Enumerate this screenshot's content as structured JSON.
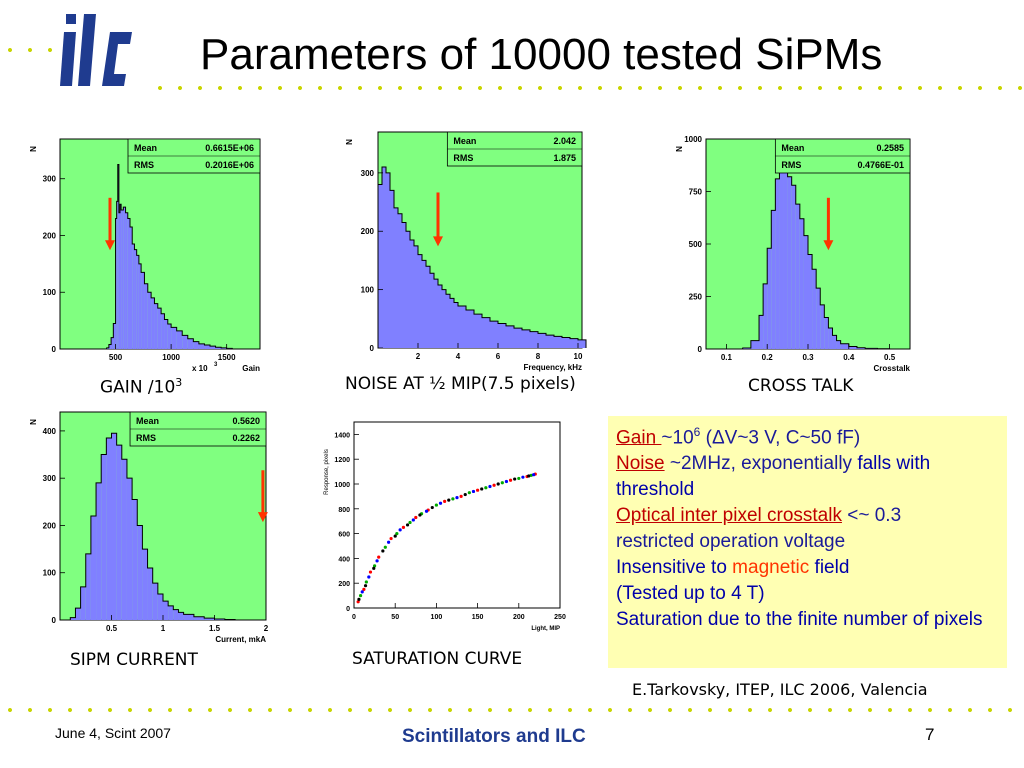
{
  "slide": {
    "title": "Parameters of 10000 tested SiPMs",
    "colors": {
      "accent_dots": "#c8d400",
      "plot_bg": "#80ff80",
      "histogram_fill": "#8080ff",
      "arrow": "#ff3300",
      "text_box": "#ffffb3"
    }
  },
  "logo": {
    "text": "ilc",
    "icon": "ilc-logo-icon"
  },
  "captions": {
    "gain": "GAIN /10",
    "gain_sup": "3",
    "noise": "NOISE AT ½ MIP(7.5 pixels)",
    "cross_talk": "CROSS TALK",
    "current": "SIPM CURRENT",
    "saturation": "SATURATION CURVE"
  },
  "text_box": {
    "gain_label": "Gain ",
    "gain_value": "~10",
    "gain_exp": "6",
    "gain_rest": " (ΔV~3 V, C~50 fF)",
    "noise_label": "Noise",
    "noise_value": " ~2MHz, exponentially ",
    "noise_tail": "falls with threshold",
    "crosstalk_label": "Optical inter pixel crosstalk",
    "crosstalk_value": " <~ 0.3",
    "restricted": "restricted operation voltage",
    "insensitive_1": "Insensitive to ",
    "insensitive_magnetic": "magnetic",
    "insensitive_2": " field",
    "tested": "(Tested up to 4 T)",
    "saturation": "Saturation due to the finite number of pixels"
  },
  "credit": "E.Tarkovsky, ITEP, ILC 2006, Valencia",
  "footer": {
    "date": "June 4,  Scint 2007",
    "center": "Scintillators and ILC",
    "page": "7"
  },
  "chart_data": [
    {
      "type": "bar",
      "id": "gain",
      "ylabel": "N",
      "xlabel": "Gain",
      "x_multiplier": "x 10",
      "x_multiplier_exp": "3",
      "stats": [
        {
          "label": "Mean",
          "value": "0.6615E+06"
        },
        {
          "label": "RMS",
          "value": "0.2016E+06"
        }
      ],
      "xlim": [
        0,
        1800
      ],
      "ylim": [
        0,
        370
      ],
      "x_ticks": [
        500,
        1000,
        1500
      ],
      "y_ticks": [
        0,
        100,
        200,
        300
      ],
      "arrow_x": 450,
      "bins": [
        [
          420,
          2
        ],
        [
          440,
          8
        ],
        [
          460,
          20
        ],
        [
          480,
          45
        ],
        [
          500,
          230
        ],
        [
          510,
          260
        ],
        [
          520,
          325
        ],
        [
          530,
          240
        ],
        [
          540,
          255
        ],
        [
          550,
          245
        ],
        [
          570,
          250
        ],
        [
          590,
          240
        ],
        [
          610,
          230
        ],
        [
          630,
          215
        ],
        [
          650,
          185
        ],
        [
          670,
          175
        ],
        [
          690,
          165
        ],
        [
          710,
          150
        ],
        [
          730,
          135
        ],
        [
          760,
          115
        ],
        [
          790,
          100
        ],
        [
          820,
          90
        ],
        [
          850,
          80
        ],
        [
          880,
          72
        ],
        [
          910,
          62
        ],
        [
          940,
          52
        ],
        [
          970,
          44
        ],
        [
          1000,
          38
        ],
        [
          1050,
          32
        ],
        [
          1100,
          24
        ],
        [
          1150,
          18
        ],
        [
          1200,
          13
        ],
        [
          1250,
          9
        ],
        [
          1300,
          7
        ],
        [
          1350,
          5
        ],
        [
          1400,
          3
        ],
        [
          1450,
          2
        ],
        [
          1500,
          1
        ]
      ]
    },
    {
      "type": "bar",
      "id": "noise",
      "ylabel": "N",
      "xlabel": "Frequency, kHz",
      "stats": [
        {
          "label": "Mean",
          "value": "2.042"
        },
        {
          "label": "RMS",
          "value": "1.875"
        }
      ],
      "xlim": [
        0,
        10.2
      ],
      "ylim": [
        0,
        370
      ],
      "x_ticks": [
        2,
        4,
        6,
        8,
        10
      ],
      "y_ticks": [
        0,
        100,
        200,
        300
      ],
      "arrow_x": 3.0,
      "bins": [
        [
          0.0,
          280
        ],
        [
          0.2,
          310
        ],
        [
          0.4,
          300
        ],
        [
          0.6,
          270
        ],
        [
          0.8,
          240
        ],
        [
          1.0,
          230
        ],
        [
          1.2,
          215
        ],
        [
          1.4,
          200
        ],
        [
          1.6,
          185
        ],
        [
          1.8,
          175
        ],
        [
          2.0,
          160
        ],
        [
          2.2,
          150
        ],
        [
          2.4,
          140
        ],
        [
          2.6,
          128
        ],
        [
          2.8,
          118
        ],
        [
          3.0,
          108
        ],
        [
          3.2,
          100
        ],
        [
          3.4,
          92
        ],
        [
          3.6,
          85
        ],
        [
          3.8,
          78
        ],
        [
          4.0,
          72
        ],
        [
          4.4,
          65
        ],
        [
          4.8,
          58
        ],
        [
          5.2,
          52
        ],
        [
          5.6,
          46
        ],
        [
          6.0,
          42
        ],
        [
          6.4,
          38
        ],
        [
          6.8,
          34
        ],
        [
          7.2,
          31
        ],
        [
          7.6,
          28
        ],
        [
          8.0,
          25
        ],
        [
          8.4,
          22
        ],
        [
          8.8,
          20
        ],
        [
          9.2,
          18
        ],
        [
          9.6,
          16
        ],
        [
          10.0,
          14
        ]
      ]
    },
    {
      "type": "bar",
      "id": "crosstalk",
      "ylabel": "N",
      "xlabel": "Crosstalk",
      "stats": [
        {
          "label": "Mean",
          "value": "0.2585"
        },
        {
          "label": "RMS",
          "value": "0.4766E-01"
        }
      ],
      "xlim": [
        0.05,
        0.55
      ],
      "ylim": [
        0,
        1000
      ],
      "x_ticks": [
        0.1,
        0.2,
        0.3,
        0.4,
        0.5
      ],
      "y_ticks": [
        0,
        250,
        500,
        750,
        1000
      ],
      "arrow_x": 0.35,
      "bins": [
        [
          0.14,
          5
        ],
        [
          0.16,
          40
        ],
        [
          0.18,
          160
        ],
        [
          0.19,
          310
        ],
        [
          0.2,
          480
        ],
        [
          0.21,
          660
        ],
        [
          0.22,
          810
        ],
        [
          0.23,
          880
        ],
        [
          0.24,
          860
        ],
        [
          0.25,
          820
        ],
        [
          0.26,
          780
        ],
        [
          0.27,
          690
        ],
        [
          0.28,
          620
        ],
        [
          0.29,
          540
        ],
        [
          0.3,
          450
        ],
        [
          0.31,
          380
        ],
        [
          0.32,
          290
        ],
        [
          0.33,
          210
        ],
        [
          0.34,
          150
        ],
        [
          0.35,
          100
        ],
        [
          0.36,
          65
        ],
        [
          0.37,
          40
        ],
        [
          0.38,
          25
        ],
        [
          0.4,
          12
        ],
        [
          0.42,
          6
        ],
        [
          0.44,
          3
        ],
        [
          0.47,
          1
        ]
      ]
    },
    {
      "type": "bar",
      "id": "current",
      "ylabel": "N",
      "xlabel": "Current, mkA",
      "stats": [
        {
          "label": "Mean",
          "value": "0.5620"
        },
        {
          "label": "RMS",
          "value": "0.2262"
        }
      ],
      "xlim": [
        0,
        2
      ],
      "ylim": [
        0,
        440
      ],
      "x_ticks": [
        0.5,
        1,
        1.5,
        2
      ],
      "y_ticks": [
        0,
        100,
        200,
        300,
        400
      ],
      "arrow_x": 1.97,
      "bins": [
        [
          0.1,
          5
        ],
        [
          0.15,
          25
        ],
        [
          0.2,
          70
        ],
        [
          0.25,
          140
        ],
        [
          0.3,
          220
        ],
        [
          0.35,
          290
        ],
        [
          0.4,
          350
        ],
        [
          0.45,
          385
        ],
        [
          0.5,
          395
        ],
        [
          0.55,
          370
        ],
        [
          0.6,
          340
        ],
        [
          0.65,
          300
        ],
        [
          0.7,
          255
        ],
        [
          0.75,
          200
        ],
        [
          0.8,
          150
        ],
        [
          0.85,
          110
        ],
        [
          0.9,
          78
        ],
        [
          0.95,
          55
        ],
        [
          1.0,
          40
        ],
        [
          1.05,
          30
        ],
        [
          1.1,
          22
        ],
        [
          1.15,
          16
        ],
        [
          1.2,
          12
        ],
        [
          1.3,
          7
        ],
        [
          1.4,
          4
        ],
        [
          1.5,
          2
        ],
        [
          1.6,
          1
        ]
      ]
    },
    {
      "type": "scatter",
      "id": "saturation",
      "ylabel": "Response, pixels",
      "xlabel": "Light, MIP",
      "xlim": [
        0,
        250
      ],
      "ylim": [
        0,
        1500
      ],
      "x_ticks": [
        0,
        50,
        100,
        150,
        200,
        250
      ],
      "y_ticks": [
        0,
        200,
        400,
        600,
        800,
        1000,
        1200,
        1400
      ],
      "series": [
        {
          "color": "#ff0000",
          "points": [
            [
              5,
              50
            ],
            [
              12,
              150
            ],
            [
              20,
              290
            ],
            [
              30,
              410
            ],
            [
              45,
              560
            ],
            [
              60,
              650
            ],
            [
              75,
              730
            ],
            [
              90,
              790
            ],
            [
              110,
              860
            ],
            [
              130,
              900
            ],
            [
              150,
              950
            ],
            [
              170,
              990
            ],
            [
              190,
              1030
            ],
            [
              210,
              1060
            ],
            [
              220,
              1080
            ]
          ]
        },
        {
          "color": "#00aa00",
          "points": [
            [
              8,
              100
            ],
            [
              15,
              210
            ],
            [
              25,
              340
            ],
            [
              38,
              490
            ],
            [
              52,
              600
            ],
            [
              68,
              690
            ],
            [
              82,
              760
            ],
            [
              100,
              830
            ],
            [
              120,
              880
            ],
            [
              140,
              930
            ],
            [
              160,
              970
            ],
            [
              180,
              1010
            ],
            [
              200,
              1045
            ],
            [
              215,
              1070
            ]
          ]
        },
        {
          "color": "#0000ff",
          "points": [
            [
              10,
              130
            ],
            [
              18,
              250
            ],
            [
              28,
              380
            ],
            [
              42,
              530
            ],
            [
              56,
              630
            ],
            [
              72,
              710
            ],
            [
              88,
              780
            ],
            [
              105,
              845
            ],
            [
              125,
              890
            ],
            [
              145,
              940
            ],
            [
              165,
              980
            ],
            [
              185,
              1020
            ],
            [
              205,
              1055
            ],
            [
              218,
              1075
            ]
          ]
        },
        {
          "color": "#000000",
          "points": [
            [
              6,
              70
            ],
            [
              14,
              180
            ],
            [
              24,
              320
            ],
            [
              35,
              460
            ],
            [
              50,
              580
            ],
            [
              65,
              670
            ],
            [
              80,
              750
            ],
            [
              95,
              810
            ],
            [
              115,
              870
            ],
            [
              135,
              915
            ],
            [
              155,
              960
            ],
            [
              175,
              1000
            ],
            [
              195,
              1040
            ],
            [
              212,
              1065
            ]
          ]
        }
      ]
    }
  ]
}
